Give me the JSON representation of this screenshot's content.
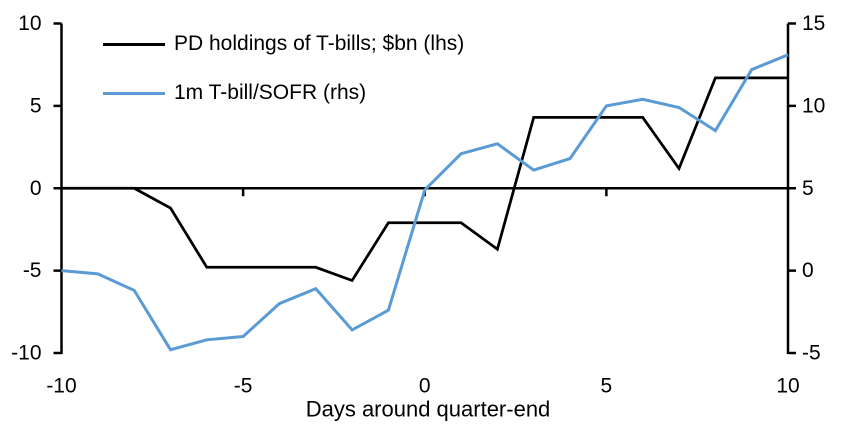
{
  "chart_data": {
    "type": "line",
    "title": "",
    "xlabel": "Days around quarter-end",
    "ylabel_left": "",
    "ylabel_right": "",
    "grid": false,
    "legend_position": "top-left-inside",
    "background": "#ffffff",
    "x": [
      -10,
      -9,
      -8,
      -7,
      -6,
      -5,
      -4,
      -3,
      -2,
      -1,
      0,
      1,
      2,
      3,
      4,
      5,
      6,
      7,
      8,
      9,
      10
    ],
    "series": [
      {
        "name": "PD holdings of T-bills; $bn (lhs)",
        "axis": "left",
        "color": "#000000",
        "values": [
          0,
          0,
          0,
          -1.2,
          -4.8,
          -4.8,
          -4.8,
          -4.8,
          -5.6,
          -2.1,
          -2.1,
          -2.1,
          -3.7,
          4.3,
          4.3,
          4.3,
          4.3,
          1.2,
          6.7,
          6.7,
          6.7
        ]
      },
      {
        "name": "1m T-bill/SOFR (rhs)",
        "axis": "right",
        "color": "#5B9BD5",
        "values": [
          0,
          -0.2,
          -1.2,
          -4.8,
          -4.2,
          -4.0,
          -2.0,
          -1.1,
          -3.6,
          -2.4,
          4.9,
          7.1,
          7.7,
          6.1,
          6.8,
          10.0,
          10.4,
          9.9,
          8.5,
          12.2,
          13.1
        ]
      }
    ],
    "left_axis": {
      "range": [
        -10,
        10
      ],
      "ticks": [
        10,
        5,
        0,
        -5,
        -10
      ]
    },
    "right_axis": {
      "range": [
        -5,
        15
      ],
      "ticks": [
        15,
        10,
        5,
        0,
        -5
      ]
    },
    "x_axis": {
      "range": [
        -10,
        10
      ],
      "ticks": [
        -10,
        -5,
        0,
        5,
        10
      ],
      "tick_marks_on_zero_line": [
        -5,
        0,
        5
      ]
    }
  }
}
